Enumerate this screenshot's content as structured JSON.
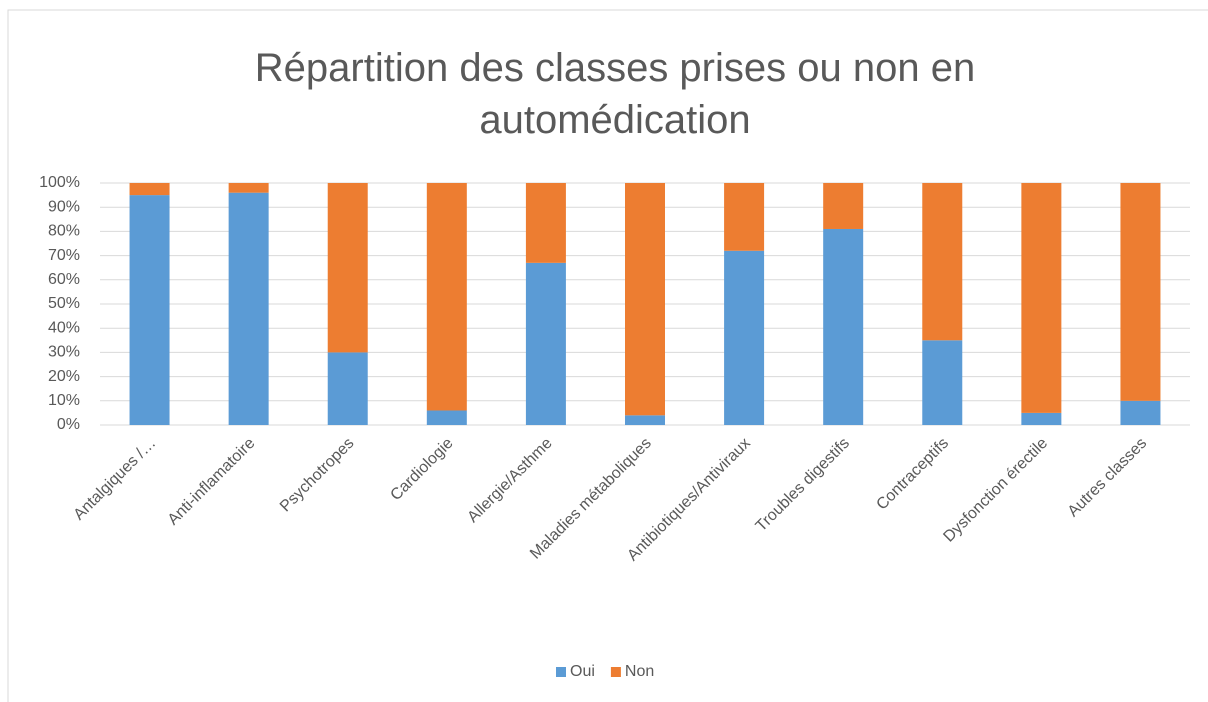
{
  "chart_data": {
    "type": "stacked_bar",
    "title": "Répartition des classes prises ou non en automédication",
    "categories": [
      "Antalgiques /…",
      "Anti-inflamatoire",
      "Psychotropes",
      "Cardiologie",
      "Allergie/Asthme",
      "Maladies métaboliques",
      "Antibiotiques/Antiviraux",
      "Troubles digestifs",
      "Contraceptifs",
      "Dysfonction érectile",
      "Autres classes"
    ],
    "series": [
      {
        "name": "Oui",
        "color": "#5b9bd5",
        "values": [
          95,
          96,
          30,
          6,
          67,
          4,
          72,
          81,
          35,
          5,
          10
        ]
      },
      {
        "name": "Non",
        "color": "#ed7d31",
        "values": [
          5,
          4,
          70,
          94,
          33,
          96,
          28,
          19,
          65,
          95,
          90
        ]
      }
    ],
    "ylim": [
      0,
      100
    ],
    "yticks": [
      {
        "value": 0,
        "label": "0%"
      },
      {
        "value": 10,
        "label": "10%"
      },
      {
        "value": 20,
        "label": "20%"
      },
      {
        "value": 30,
        "label": "30%"
      },
      {
        "value": 40,
        "label": "40%"
      },
      {
        "value": 50,
        "label": "50%"
      },
      {
        "value": 60,
        "label": "60%"
      },
      {
        "value": 70,
        "label": "70%"
      },
      {
        "value": 80,
        "label": "80%"
      },
      {
        "value": 90,
        "label": "90%"
      },
      {
        "value": 100,
        "label": "100%"
      }
    ],
    "grid": true,
    "legend": "bottom"
  }
}
